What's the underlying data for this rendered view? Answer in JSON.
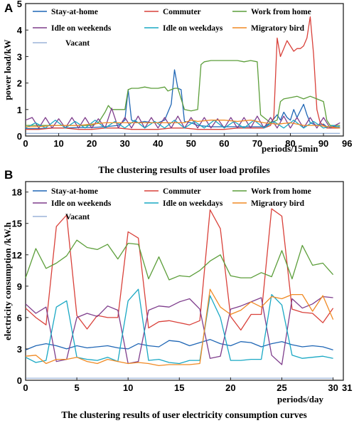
{
  "chart_data": [
    {
      "type": "line",
      "panel_label": "A",
      "title": "The clustering results of user load profiles",
      "xlabel": "periods/15min",
      "ylabel": "power load/kW",
      "xlim": [
        0,
        96
      ],
      "ylim": [
        0,
        5
      ],
      "xticks": [
        0,
        10,
        20,
        30,
        40,
        50,
        60,
        70,
        80,
        90,
        96
      ],
      "yticks": [
        0,
        1,
        2,
        3,
        4,
        5
      ],
      "legend": "top",
      "series": [
        {
          "name": "Stay-at-home",
          "color": "#1f66b5",
          "x": [
            0,
            4,
            8,
            12,
            16,
            20,
            24,
            28,
            29,
            30,
            31,
            32,
            34,
            36,
            38,
            40,
            42,
            44,
            45,
            46,
            47,
            48,
            50,
            52,
            56,
            60,
            64,
            68,
            72,
            74,
            76,
            77,
            78,
            79,
            80,
            81,
            82,
            84,
            85,
            86,
            88,
            90,
            91,
            92,
            95
          ],
          "y": [
            0.28,
            0.28,
            0.3,
            0.3,
            0.32,
            0.32,
            0.35,
            0.4,
            0.5,
            0.6,
            1.75,
            0.6,
            0.5,
            0.55,
            0.5,
            0.5,
            0.6,
            1.2,
            2.5,
            1.8,
            1.75,
            0.55,
            0.5,
            0.4,
            0.35,
            0.35,
            0.35,
            0.35,
            0.35,
            0.5,
            0.8,
            0.6,
            0.9,
            0.7,
            0.6,
            1.0,
            0.7,
            1.2,
            0.8,
            0.5,
            0.4,
            0.45,
            0.35,
            0.35,
            0.35
          ]
        },
        {
          "name": "Commuter",
          "color": "#d9413a",
          "x": [
            0,
            4,
            8,
            12,
            16,
            20,
            24,
            28,
            32,
            36,
            40,
            44,
            48,
            52,
            56,
            60,
            64,
            68,
            72,
            74,
            75,
            76,
            77,
            78,
            79,
            80,
            81,
            82,
            83,
            84,
            85,
            86,
            87,
            88,
            89,
            90,
            91,
            92,
            95
          ],
          "y": [
            0.25,
            0.25,
            0.3,
            0.3,
            0.25,
            0.25,
            0.3,
            0.3,
            0.25,
            0.25,
            0.25,
            0.3,
            0.3,
            0.25,
            0.25,
            0.25,
            0.3,
            0.3,
            0.3,
            0.4,
            0.7,
            3.7,
            3.0,
            3.3,
            3.6,
            3.4,
            3.2,
            3.3,
            3.3,
            3.4,
            3.7,
            4.5,
            3.1,
            1.0,
            0.5,
            0.4,
            0.3,
            0.3,
            0.3
          ]
        },
        {
          "name": "Work from home",
          "color": "#5c9e3a",
          "x": [
            0,
            4,
            8,
            12,
            16,
            20,
            22,
            24,
            25,
            26,
            28,
            30,
            31,
            32,
            34,
            36,
            38,
            40,
            42,
            43,
            44,
            45,
            46,
            48,
            50,
            52,
            53,
            54,
            56,
            58,
            60,
            62,
            64,
            66,
            68,
            70,
            71,
            72,
            74,
            76,
            77,
            78,
            80,
            82,
            84,
            86,
            88,
            90,
            91,
            92,
            95
          ],
          "y": [
            0.4,
            0.4,
            0.4,
            0.4,
            0.4,
            0.4,
            0.5,
            0.9,
            1.15,
            1.0,
            1.0,
            1.0,
            1.75,
            1.8,
            1.8,
            1.85,
            1.8,
            1.8,
            1.85,
            1.7,
            1.75,
            1.8,
            1.8,
            1.0,
            0.95,
            1.0,
            2.7,
            2.8,
            2.85,
            2.85,
            2.85,
            2.85,
            2.85,
            2.8,
            2.85,
            2.8,
            0.8,
            0.7,
            0.5,
            0.6,
            1.3,
            1.4,
            1.45,
            1.5,
            1.4,
            1.5,
            1.4,
            1.3,
            0.6,
            0.4,
            0.4
          ]
        },
        {
          "name": "Idle on weekends",
          "color": "#7e3d8c",
          "x": [
            0,
            2,
            4,
            6,
            8,
            10,
            12,
            14,
            16,
            18,
            20,
            22,
            24,
            26,
            28,
            30,
            32,
            34,
            36,
            38,
            40,
            42,
            44,
            46,
            48,
            50,
            52,
            54,
            56,
            58,
            60,
            62,
            64,
            66,
            68,
            70,
            72,
            74,
            76,
            78,
            80,
            82,
            84,
            86,
            88,
            90,
            92,
            95
          ],
          "y": [
            0.6,
            0.7,
            0.3,
            0.7,
            0.3,
            0.65,
            0.3,
            0.7,
            0.3,
            0.7,
            0.3,
            0.65,
            0.3,
            1.05,
            0.3,
            0.7,
            0.3,
            0.75,
            0.3,
            0.7,
            0.3,
            0.7,
            0.3,
            0.75,
            0.3,
            0.7,
            0.3,
            0.7,
            0.3,
            0.65,
            0.3,
            0.7,
            0.3,
            0.7,
            0.3,
            0.75,
            0.3,
            0.7,
            0.3,
            0.75,
            0.3,
            0.7,
            0.3,
            0.7,
            0.3,
            0.7,
            0.3,
            0.5
          ]
        },
        {
          "name": "Idle on weekdays",
          "color": "#19a8c4",
          "x": [
            0,
            3,
            6,
            9,
            12,
            15,
            18,
            21,
            24,
            27,
            30,
            33,
            36,
            39,
            42,
            45,
            48,
            51,
            54,
            57,
            60,
            63,
            66,
            69,
            72,
            75,
            78,
            81,
            84,
            87,
            90,
            93,
            95
          ],
          "y": [
            0.3,
            0.5,
            0.3,
            0.6,
            0.3,
            0.55,
            0.3,
            0.6,
            0.3,
            0.55,
            0.3,
            0.6,
            0.3,
            0.55,
            0.3,
            0.6,
            0.3,
            0.55,
            0.3,
            0.6,
            0.3,
            0.55,
            0.3,
            0.6,
            0.3,
            0.55,
            0.3,
            0.6,
            0.3,
            0.55,
            0.3,
            0.4,
            0.3
          ]
        },
        {
          "name": "Migratory bird",
          "color": "#f08a24",
          "x": [
            0,
            4,
            8,
            12,
            16,
            20,
            24,
            28,
            32,
            36,
            40,
            44,
            48,
            50,
            52,
            56,
            60,
            64,
            68,
            72,
            76,
            80,
            84,
            88,
            92,
            95
          ],
          "y": [
            0.35,
            0.35,
            0.4,
            0.4,
            0.4,
            0.45,
            0.5,
            0.5,
            0.5,
            0.5,
            0.5,
            0.5,
            0.5,
            0.6,
            0.55,
            0.6,
            0.6,
            0.55,
            0.6,
            0.5,
            0.45,
            0.5,
            0.4,
            0.4,
            0.35,
            0.3
          ]
        },
        {
          "name": "Vacant",
          "color": "#9bb4d9",
          "x": [
            0,
            95
          ],
          "y": [
            0.1,
            0.1
          ]
        }
      ]
    },
    {
      "type": "line",
      "panel_label": "B",
      "title": "The clustering results of user electricity consumption curves",
      "xlabel": "periods/day",
      "ylabel": "electricity consumption /kW.h",
      "xlim": [
        0,
        31
      ],
      "ylim": [
        0,
        19
      ],
      "xticks": [
        0,
        5,
        10,
        15,
        20,
        25,
        30,
        31
      ],
      "yticks": [
        0,
        3,
        6,
        9,
        12,
        15,
        18
      ],
      "legend": "top",
      "series": [
        {
          "name": "Stay-at-home",
          "color": "#1f66b5",
          "x": [
            0,
            1,
            2,
            3,
            4,
            5,
            6,
            7,
            8,
            9,
            10,
            11,
            12,
            13,
            14,
            15,
            16,
            17,
            18,
            19,
            20,
            21,
            22,
            23,
            24,
            25,
            26,
            27,
            28,
            29,
            30
          ],
          "y": [
            2.9,
            3.3,
            3.5,
            3.3,
            3.0,
            3.3,
            3.1,
            3.2,
            3.3,
            3.1,
            3.0,
            3.5,
            3.3,
            3.2,
            3.8,
            3.7,
            3.3,
            3.6,
            3.9,
            3.5,
            3.3,
            3.7,
            3.6,
            3.2,
            3.5,
            3.7,
            3.4,
            3.2,
            3.3,
            3.2,
            2.9
          ]
        },
        {
          "name": "Commuter",
          "color": "#d9413a",
          "x": [
            0,
            1,
            2,
            3,
            4,
            5,
            6,
            7,
            8,
            9,
            10,
            11,
            12,
            13,
            14,
            15,
            16,
            17,
            18,
            19,
            20,
            21,
            22,
            23,
            24,
            25,
            26,
            27,
            28,
            29,
            30
          ],
          "y": [
            6.9,
            6.0,
            5.3,
            14.7,
            15.8,
            6.2,
            4.9,
            6.2,
            6.0,
            6.0,
            14.2,
            13.6,
            5.0,
            5.6,
            5.7,
            5.5,
            5.3,
            5.7,
            16.3,
            14.5,
            6.1,
            4.8,
            6.3,
            6.3,
            16.4,
            15.7,
            6.8,
            6.5,
            6.4,
            5.5,
            6.9
          ]
        },
        {
          "name": "Work from home",
          "color": "#5c9e3a",
          "x": [
            0,
            1,
            2,
            3,
            4,
            5,
            6,
            7,
            8,
            9,
            10,
            11,
            12,
            13,
            14,
            15,
            16,
            17,
            18,
            19,
            20,
            21,
            22,
            23,
            24,
            25,
            26,
            27,
            28,
            29,
            30
          ],
          "y": [
            9.8,
            12.6,
            10.7,
            11.2,
            11.9,
            13.4,
            12.7,
            12.5,
            13.0,
            11.6,
            13.1,
            13.0,
            9.7,
            11.8,
            9.6,
            10.0,
            9.9,
            10.5,
            11.4,
            12.0,
            10.0,
            9.8,
            9.8,
            10.3,
            9.9,
            12.4,
            9.7,
            12.9,
            11.0,
            11.2,
            10.1
          ]
        },
        {
          "name": "Idle on weekends",
          "color": "#7e3d8c",
          "x": [
            0,
            1,
            2,
            3,
            4,
            5,
            6,
            7,
            8,
            9,
            10,
            11,
            12,
            13,
            14,
            15,
            16,
            17,
            18,
            19,
            20,
            21,
            22,
            23,
            24,
            25,
            26,
            27,
            28,
            29,
            30
          ],
          "y": [
            7.3,
            6.4,
            7.0,
            1.8,
            2.0,
            6.0,
            6.4,
            6.1,
            7.1,
            6.7,
            1.6,
            1.8,
            6.7,
            7.1,
            7.0,
            7.5,
            7.8,
            6.8,
            2.1,
            2.3,
            6.8,
            7.1,
            7.5,
            7.9,
            2.4,
            1.5,
            7.8,
            6.9,
            7.3,
            8.0,
            7.9
          ]
        },
        {
          "name": "Idle on weekdays",
          "color": "#19a8c4",
          "x": [
            0,
            1,
            2,
            3,
            4,
            5,
            6,
            7,
            8,
            9,
            10,
            11,
            12,
            13,
            14,
            15,
            16,
            17,
            18,
            19,
            20,
            21,
            22,
            23,
            24,
            25,
            26,
            27,
            28,
            29,
            30
          ],
          "y": [
            2.2,
            1.7,
            1.9,
            7.0,
            7.6,
            2.2,
            2.0,
            1.9,
            2.2,
            1.8,
            7.6,
            8.7,
            1.9,
            2.0,
            1.7,
            1.6,
            1.9,
            1.9,
            8.1,
            6.0,
            1.9,
            1.9,
            2.0,
            2.0,
            8.2,
            7.2,
            2.4,
            2.1,
            2.2,
            2.3,
            2.1
          ]
        },
        {
          "name": "Migratory bird",
          "color": "#f08a24",
          "x": [
            0,
            1,
            2,
            3,
            4,
            5,
            6,
            7,
            8,
            9,
            10,
            11,
            12,
            13,
            14,
            15,
            16,
            17,
            18,
            19,
            20,
            21,
            22,
            23,
            24,
            25,
            26,
            27,
            28,
            29,
            30
          ],
          "y": [
            2.3,
            2.4,
            1.6,
            2.0,
            2.0,
            2.2,
            1.8,
            1.6,
            2.0,
            1.8,
            1.6,
            1.7,
            1.6,
            1.4,
            1.5,
            1.5,
            1.5,
            1.6,
            8.7,
            7.0,
            6.3,
            6.7,
            7.5,
            7.0,
            8.0,
            7.8,
            8.2,
            8.2,
            6.6,
            8.1,
            5.8
          ]
        },
        {
          "name": "Vacant",
          "color": "#9bb4d9",
          "x": [
            0,
            30
          ],
          "y": [
            0.2,
            0.2
          ]
        }
      ]
    }
  ]
}
